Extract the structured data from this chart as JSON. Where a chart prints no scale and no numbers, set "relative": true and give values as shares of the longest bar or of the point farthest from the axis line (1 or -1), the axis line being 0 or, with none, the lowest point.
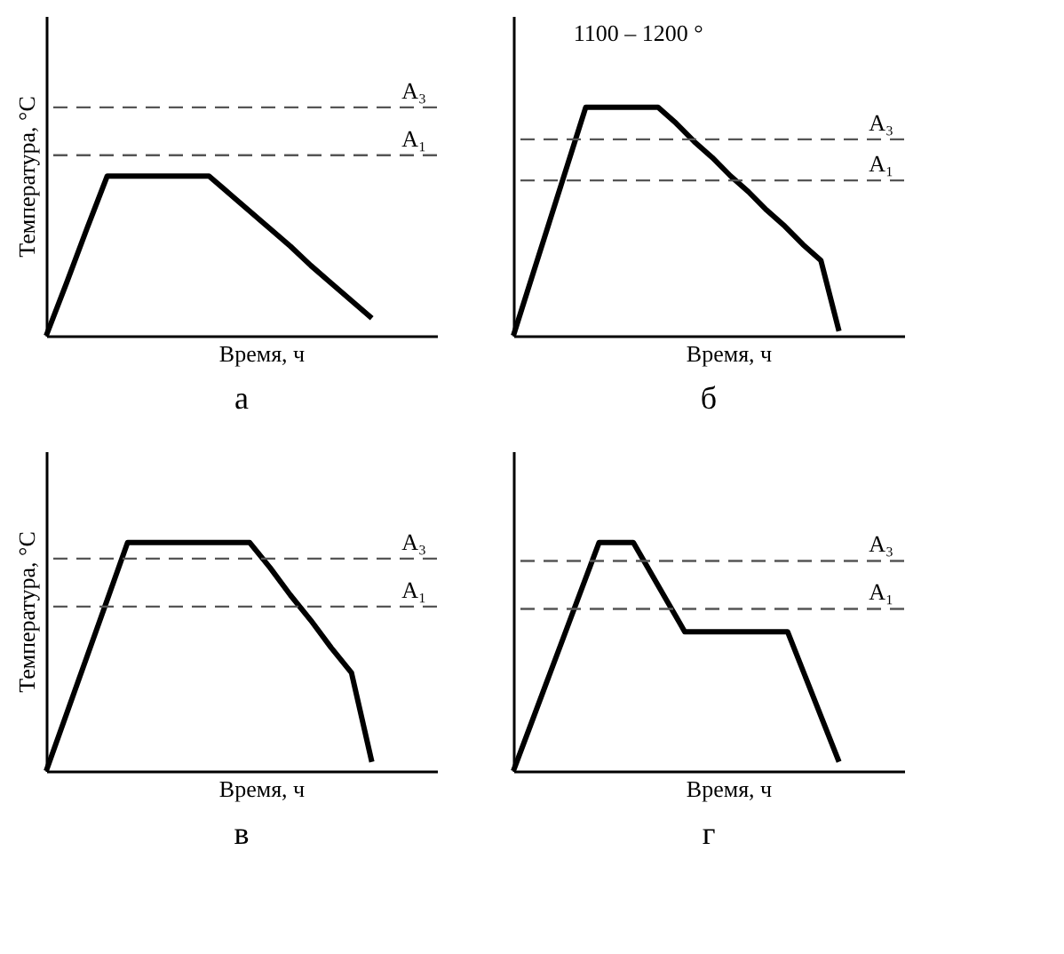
{
  "chart_data": [
    {
      "type": "line",
      "title": "а",
      "xlabel": "Время, ч",
      "ylabel": "Температура, °C",
      "relative": true,
      "tick_labels": false,
      "line_style": "solid",
      "color": "#000000",
      "categories": [
        null,
        null,
        null,
        null,
        null,
        null,
        null,
        null,
        null,
        null,
        null,
        null,
        null,
        null,
        null,
        null,
        null
      ],
      "values": [
        0,
        0.33,
        0.67,
        1,
        1,
        1,
        1,
        1,
        1,
        0.89,
        0.78,
        0.67,
        0.56,
        0.44,
        0.33,
        0.22,
        0.11
      ],
      "ref_lines": [
        {
          "axis": "y",
          "value": 1.43,
          "label": "A₃",
          "line_style": "dashed",
          "color": "#555555"
        },
        {
          "axis": "y",
          "value": 1.13,
          "label": "A₁",
          "line_style": "dashed",
          "color": "#555555"
        }
      ]
    },
    {
      "type": "line",
      "title": "б",
      "xlabel": "Время, ч",
      "relative": true,
      "tick_labels": false,
      "line_style": "solid",
      "color": "#000000",
      "categories": [
        null,
        null,
        null,
        null,
        null,
        null,
        null,
        null,
        null,
        null,
        null,
        null,
        null,
        null,
        null,
        null,
        null,
        null,
        null
      ],
      "values": [
        0,
        0.25,
        0.5,
        0.75,
        1,
        1,
        1,
        1,
        1,
        0.93,
        0.85,
        0.78,
        0.7,
        0.63,
        0.55,
        0.48,
        0.4,
        0.33,
        0.02
      ],
      "ref_lines": [
        {
          "axis": "y",
          "value": 0.86,
          "label": "A₃",
          "line_style": "dashed",
          "color": "#555555"
        },
        {
          "axis": "y",
          "value": 0.68,
          "label": "A₁",
          "line_style": "dashed",
          "color": "#555555"
        }
      ],
      "annotations": [
        "1100 – 1200 °"
      ]
    },
    {
      "type": "line",
      "title": "в",
      "xlabel": "Время, ч",
      "ylabel": "Температура, °C",
      "relative": true,
      "tick_labels": false,
      "line_style": "solid",
      "color": "#000000",
      "categories": [
        null,
        null,
        null,
        null,
        null,
        null,
        null,
        null,
        null,
        null,
        null,
        null,
        null,
        null,
        null,
        null,
        null
      ],
      "values": [
        0,
        0.25,
        0.5,
        0.75,
        1,
        1,
        1,
        1,
        1,
        1,
        1,
        0.89,
        0.77,
        0.66,
        0.54,
        0.43,
        0.04
      ],
      "ref_lines": [
        {
          "axis": "y",
          "value": 0.93,
          "label": "A₃",
          "line_style": "dashed",
          "color": "#555555"
        },
        {
          "axis": "y",
          "value": 0.72,
          "label": "A₁",
          "line_style": "dashed",
          "color": "#555555"
        }
      ]
    },
    {
      "type": "line",
      "title": "г",
      "xlabel": "Время, ч",
      "relative": true,
      "tick_labels": false,
      "line_style": "solid",
      "color": "#000000",
      "categories": [
        null,
        null,
        null,
        null,
        null,
        null,
        null,
        null,
        null,
        null,
        null,
        null,
        null,
        null,
        null,
        null,
        null,
        null,
        null,
        null
      ],
      "values": [
        0,
        0.2,
        0.4,
        0.6,
        0.8,
        1,
        1,
        1,
        0.87,
        0.74,
        0.61,
        0.61,
        0.61,
        0.61,
        0.61,
        0.61,
        0.61,
        0.42,
        0.23,
        0.04
      ],
      "ref_lines": [
        {
          "axis": "y",
          "value": 0.92,
          "label": "A₃",
          "line_style": "dashed",
          "color": "#555555"
        },
        {
          "axis": "y",
          "value": 0.71,
          "label": "A₁",
          "line_style": "dashed",
          "color": "#555555"
        }
      ]
    }
  ]
}
